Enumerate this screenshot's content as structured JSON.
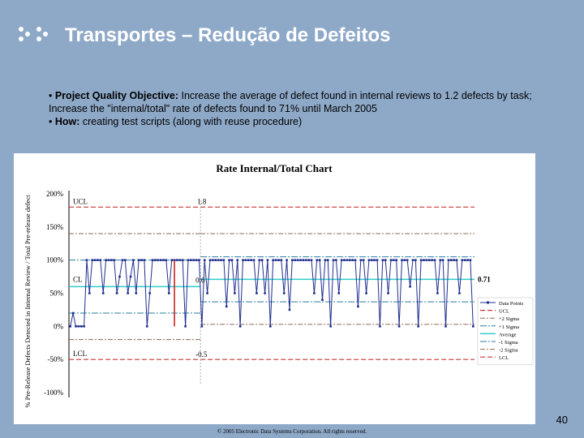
{
  "slide": {
    "title": "Transportes – Redução de Defeitos",
    "bullet1_label": "Project Quality Objective:",
    "bullet1_text": " Increase the average of defect found in internal reviews to 1.2 defects by task; Increase the \"internal/total\" rate of defects found to 71% until March 2005",
    "bullet2_label": "How:",
    "bullet2_text": " creating test scripts (along with reuse procedure)",
    "page_number": "40",
    "footer": "© 2005 Electronic Data Systems Corporation. All rights reserved."
  },
  "colors": {
    "background": "#8ea9c8",
    "data": "#1f2f8f",
    "ucl_lcl": "#cc3333",
    "sigma1": "#2a7da0",
    "sigma2": "#8b6a5a",
    "average": "#33cccc",
    "highlight": "#cc2222"
  },
  "chart_data": {
    "type": "line",
    "title": "Rate Internal/Total Chart",
    "ylabel": "% Pre-Release Defects Detected in Internal Review / Total Pre-release defect",
    "ylim": [
      -100,
      200
    ],
    "yticks": [
      "200%",
      "150%",
      "100%",
      "50%",
      "0%",
      "-50%",
      "-100%"
    ],
    "ytick_values": [
      200,
      150,
      100,
      50,
      0,
      -50,
      -100
    ],
    "phases": [
      {
        "UCL": 180,
        "CL": 60,
        "LCL": -50,
        "plus2": 140,
        "plus1": 100,
        "minus1": 20,
        "minus2": -20
      },
      {
        "UCL": 180,
        "CL": 71,
        "LCL": -50,
        "plus2": 140,
        "plus1": 105,
        "minus1": 37,
        "minus2": 3
      }
    ],
    "annotations": {
      "UCL": "UCL",
      "CL": "CL",
      "LCL": "LCL",
      "ucl_value": "1.8",
      "cl1_value": "0.6",
      "cl2_value": "0.71",
      "lcl_value": "-0.5"
    },
    "legend": [
      "Data Points",
      "UCL",
      "+2 Sigma",
      "+1 Sigma",
      "Average",
      "-1 Sigma",
      "-2 Sigma",
      "LCL"
    ],
    "legend_position": "right",
    "phase_break_index": 48,
    "series": [
      {
        "values": [
          0,
          20,
          0,
          0,
          0,
          0,
          100,
          50,
          100,
          100,
          100,
          100,
          50,
          100,
          100,
          100,
          100,
          50,
          75,
          100,
          100,
          50,
          75,
          100,
          50,
          100,
          100,
          100,
          0,
          50,
          100,
          100,
          100,
          100,
          100,
          100,
          50,
          100,
          100,
          100,
          100,
          100,
          0,
          100,
          100,
          100,
          100,
          100,
          0,
          100,
          50,
          100,
          100,
          100,
          100,
          100,
          100,
          30,
          100,
          100,
          50,
          100,
          0,
          100,
          100,
          100,
          100,
          100,
          50,
          100,
          100,
          50,
          100,
          0,
          100,
          100,
          100,
          100,
          50,
          100,
          25,
          100,
          100,
          100,
          100,
          100,
          100,
          100,
          100,
          50,
          100,
          100,
          40,
          100,
          100,
          0,
          100,
          100,
          50,
          100,
          100,
          100,
          100,
          100,
          100,
          30,
          100,
          100,
          50,
          100,
          100,
          100,
          100,
          0,
          100,
          100,
          50,
          100,
          100,
          100,
          0,
          100,
          100,
          100,
          60,
          100,
          100,
          0,
          100,
          100,
          100,
          100,
          100,
          100,
          50,
          100,
          100,
          0,
          100,
          100,
          100,
          100,
          50,
          100,
          100,
          100,
          100,
          0
        ]
      }
    ]
  }
}
